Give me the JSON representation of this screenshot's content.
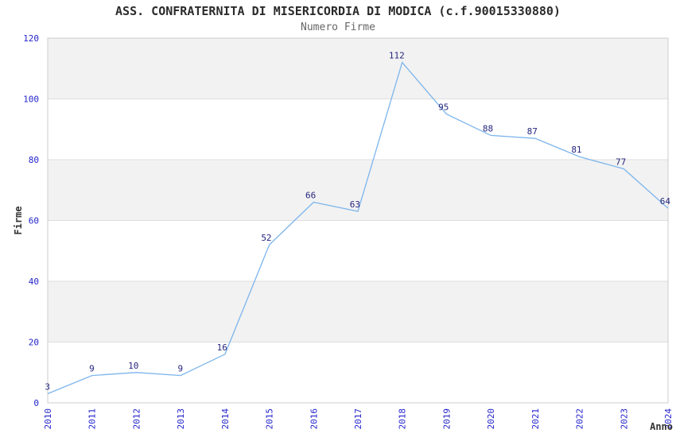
{
  "title": "ASS. CONFRATERNITA DI MISERICORDIA DI MODICA (c.f.90015330880)",
  "subtitle": "Numero Firme",
  "chart_data": {
    "type": "line",
    "title": "ASS. CONFRATERNITA DI MISERICORDIA DI MODICA (c.f.90015330880)",
    "subtitle": "Numero Firme",
    "x": [
      2010,
      2011,
      2012,
      2013,
      2014,
      2015,
      2016,
      2017,
      2018,
      2019,
      2020,
      2021,
      2022,
      2023,
      2024
    ],
    "series": [
      {
        "name": "Numero Firme",
        "values": [
          3,
          9,
          10,
          9,
          16,
          52,
          66,
          63,
          112,
          95,
          88,
          87,
          81,
          77,
          64
        ]
      }
    ],
    "xlabel": "Anno",
    "ylabel": "Firme",
    "ylim": [
      0,
      120
    ],
    "yticks": [
      0,
      20,
      40,
      60,
      80,
      100,
      120
    ],
    "grid": "horizontal-bands-alternating",
    "legend": "none",
    "markers": "none",
    "data_labels_visible": true,
    "colors": {
      "line": "#7cb5ec",
      "band_gray": "#f2f2f2",
      "band_white": "#ffffff",
      "gridline": "#dedede",
      "plot_border": "#cccccc",
      "tick_label": "#2424cc",
      "data_label": "#26267e",
      "axis_title": "#333333",
      "title": "#2b2b2b",
      "subtitle": "#666666"
    }
  }
}
